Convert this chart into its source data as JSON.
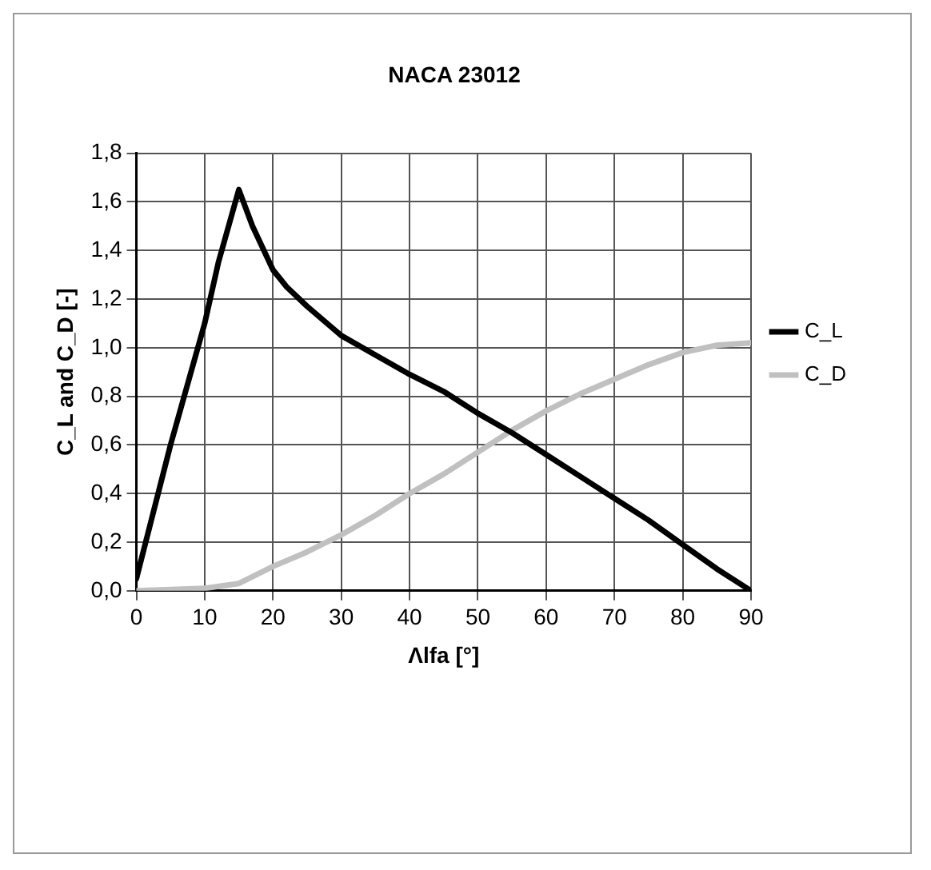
{
  "chart_data": {
    "type": "line",
    "title": "NACA 23012",
    "xlabel": "Λlfa [°]",
    "ylabel": "C_L and C_D [-]",
    "xlim": [
      0,
      90
    ],
    "xticks": [
      0,
      10,
      20,
      30,
      40,
      50,
      60,
      70,
      80,
      90
    ],
    "ylim": [
      0,
      1.8
    ],
    "yticks": [
      {
        "value": 0,
        "label": "0,0"
      },
      {
        "value": 0.2,
        "label": "0,2"
      },
      {
        "value": 0.4,
        "label": "0,4"
      },
      {
        "value": 0.6,
        "label": "0,6"
      },
      {
        "value": 0.8,
        "label": "0,8"
      },
      {
        "value": 1,
        "label": "1,0"
      },
      {
        "value": 1.2,
        "label": "1,2"
      },
      {
        "value": 1.4,
        "label": "1,4"
      },
      {
        "value": 1.6,
        "label": "1,6"
      },
      {
        "value": 1.8,
        "label": "1,8"
      }
    ],
    "grid": true,
    "legend": "right",
    "marker": "none",
    "line_style": "solid",
    "series": [
      {
        "name": "C_L",
        "color": "#000000",
        "x": [
          0,
          5,
          10,
          12,
          15,
          17,
          20,
          22,
          25,
          30,
          35,
          40,
          45,
          50,
          55,
          60,
          65,
          70,
          75,
          80,
          85,
          90
        ],
        "values": [
          0.05,
          0.6,
          1.1,
          1.35,
          1.65,
          1.5,
          1.32,
          1.25,
          1.17,
          1.05,
          0.97,
          0.89,
          0.82,
          0.73,
          0.65,
          0.56,
          0.47,
          0.38,
          0.29,
          0.19,
          0.09,
          0
        ]
      },
      {
        "name": "C_D",
        "color": "#c0c0c0",
        "x": [
          0,
          10,
          15,
          20,
          25,
          30,
          35,
          40,
          45,
          50,
          55,
          60,
          65,
          70,
          75,
          80,
          85,
          90
        ],
        "values": [
          0,
          0.01,
          0.03,
          0.1,
          0.16,
          0.23,
          0.31,
          0.4,
          0.48,
          0.57,
          0.66,
          0.74,
          0.81,
          0.87,
          0.93,
          0.98,
          1.01,
          1.02
        ]
      }
    ]
  }
}
